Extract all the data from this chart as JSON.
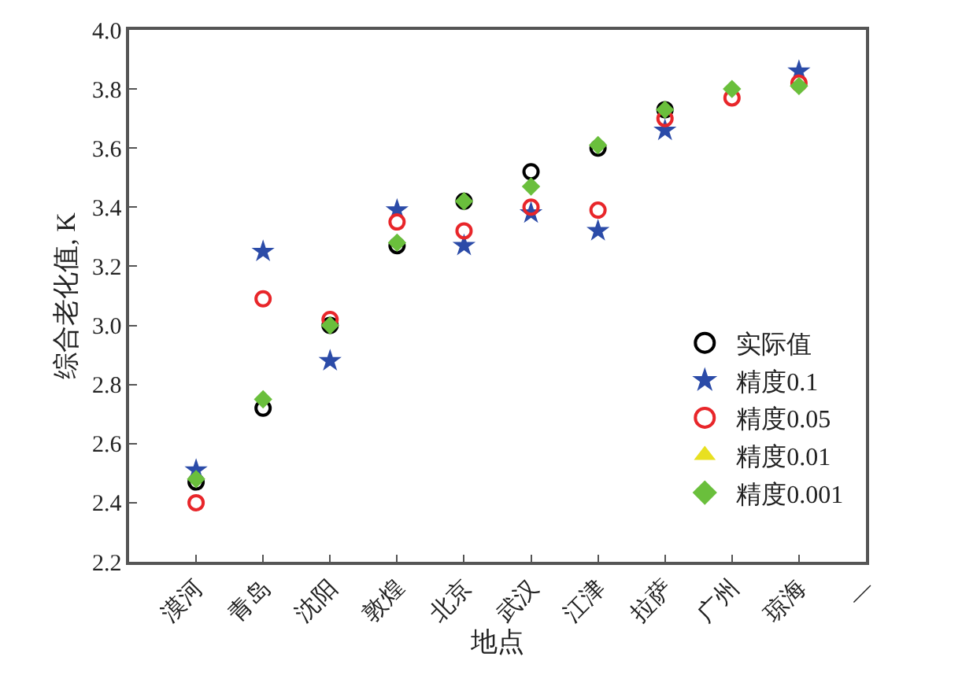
{
  "chart_data": {
    "type": "scatter",
    "xlabel": "地点",
    "ylabel": "综合老化值, K",
    "categories": [
      "漠河",
      "青岛",
      "沈阳",
      "敦煌",
      "北京",
      "武汉",
      "江津",
      "拉萨",
      "广州",
      "琼海",
      "—"
    ],
    "ylim": [
      2.2,
      4.0
    ],
    "yticks": [
      2.2,
      2.4,
      2.6,
      2.8,
      {
        "value": 3,
        "label": "3.0"
      },
      3.2,
      3.4,
      3.6,
      3.8,
      {
        "value": 4,
        "label": "4.0"
      }
    ],
    "legend": "bottom right",
    "series": [
      {
        "name": "实际值",
        "color": "#000000",
        "marker": "circle",
        "values": [
          2.47,
          2.72,
          3.0,
          3.27,
          3.42,
          3.52,
          3.6,
          3.73,
          null,
          null,
          null
        ]
      },
      {
        "name": "精度0.1",
        "color": "#2b4ba8",
        "marker": "star",
        "values": [
          2.51,
          3.25,
          2.88,
          3.39,
          3.27,
          3.38,
          3.32,
          3.66,
          null,
          3.86,
          null
        ]
      },
      {
        "name": "精度0.05",
        "color": "#e8262a",
        "marker": "circle",
        "values": [
          2.4,
          3.09,
          3.02,
          3.35,
          3.32,
          3.4,
          3.39,
          3.7,
          3.77,
          3.82,
          null
        ]
      },
      {
        "name": "精度0.01",
        "color": "#e8e020",
        "marker": "triangle",
        "values": [
          null,
          null,
          null,
          null,
          null,
          null,
          null,
          null,
          null,
          null,
          null
        ]
      },
      {
        "name": "精度0.001",
        "color": "#6abf3c",
        "marker": "diamond",
        "values": [
          2.48,
          2.75,
          3.0,
          3.28,
          3.42,
          3.47,
          3.61,
          3.73,
          3.8,
          3.81,
          null
        ]
      }
    ]
  }
}
